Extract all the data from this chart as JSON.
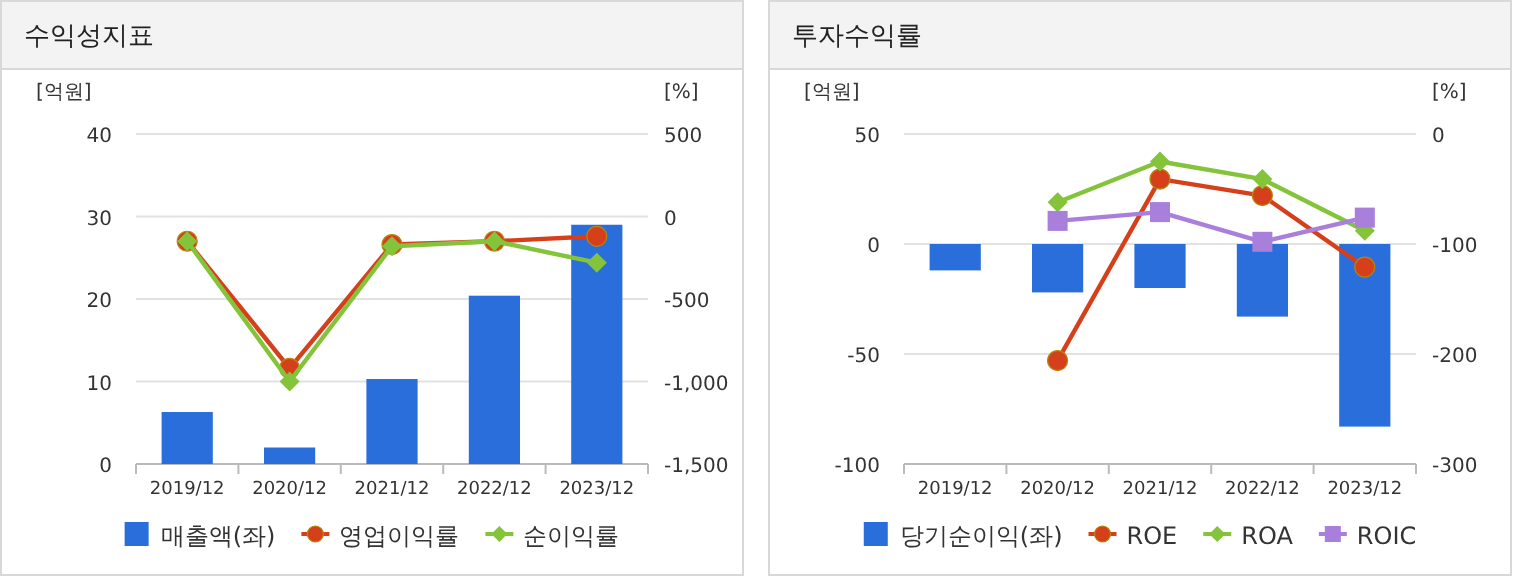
{
  "chart_data": [
    {
      "type": "bar",
      "title": "수익성지표",
      "ylabel": "[억원]",
      "y2label": "[%]",
      "categories": [
        "2019/12",
        "2020/12",
        "2021/12",
        "2022/12",
        "2023/12"
      ],
      "series": [
        {
          "name": "매출액(좌)",
          "color": "#2a6edb",
          "values": [
            6.3,
            2.0,
            10.3,
            20.4,
            29.0
          ]
        },
        {
          "name": "영업이익률",
          "type": "line",
          "axis": "y2",
          "marker": "circle",
          "color": "#d5401b",
          "values": [
            -150,
            -920,
            -170,
            -150,
            -120
          ]
        },
        {
          "name": "순이익률",
          "type": "line",
          "axis": "y2",
          "marker": "diamond",
          "color": "#84c43a",
          "values": [
            -150,
            -1000,
            -180,
            -150,
            -280
          ]
        }
      ],
      "ylim": [
        0,
        40
      ],
      "yticks": [
        0,
        10,
        20,
        30,
        40
      ],
      "y2lim": [
        -1500,
        500
      ],
      "y2ticks": [
        500,
        0,
        {
          "value": -500,
          "label": "-500"
        },
        {
          "value": -1000,
          "label": "-1,000"
        },
        {
          "value": -1500,
          "label": "-1,500"
        }
      ],
      "grid": "y",
      "legend": "bottom"
    },
    {
      "type": "bar",
      "title": "투자수익률",
      "ylabel": "[억원]",
      "y2label": "[%]",
      "categories": [
        "2019/12",
        "2020/12",
        "2021/12",
        "2022/12",
        "2023/12"
      ],
      "series": [
        {
          "name": "당기순이익(좌)",
          "color": "#2a6edb",
          "values": [
            -12,
            -22,
            -20,
            -33,
            -83
          ]
        },
        {
          "name": "ROE",
          "type": "line",
          "axis": "y2",
          "marker": "circle",
          "color": "#d5401b",
          "values": [
            null,
            -206,
            -41,
            -56,
            -121
          ]
        },
        {
          "name": "ROA",
          "type": "line",
          "axis": "y2",
          "marker": "diamond",
          "color": "#84c43a",
          "values": [
            null,
            -62,
            -25,
            -41,
            -88
          ]
        },
        {
          "name": "ROIC",
          "type": "line",
          "axis": "y2",
          "marker": "square",
          "color": "#a97fdc",
          "values": [
            null,
            -79,
            -71,
            -98,
            -76
          ]
        }
      ],
      "ylim": [
        -100,
        50
      ],
      "yticks": [
        -100,
        -50,
        0,
        50
      ],
      "y2lim": [
        -300,
        0
      ],
      "y2ticks": [
        -300,
        -200,
        -100,
        0
      ],
      "grid": "y",
      "legend": "bottom"
    }
  ]
}
